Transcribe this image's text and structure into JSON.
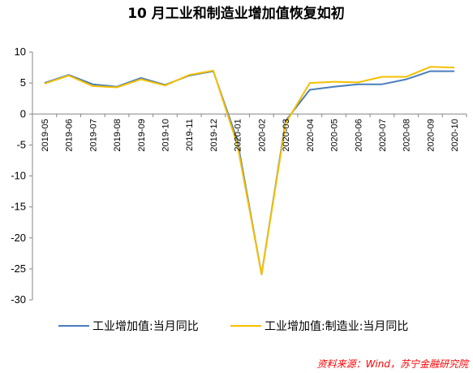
{
  "chart_data": {
    "type": "line",
    "title": "10 月工业和制造业增加值恢复如初",
    "x": [
      "2019-05",
      "2019-06",
      "2019-07",
      "2019-08",
      "2019-09",
      "2019-10",
      "2019-11",
      "2019-12",
      "2020-01",
      "2020-02",
      "2020-03",
      "2020-04",
      "2020-05",
      "2020-06",
      "2020-07",
      "2020-08",
      "2020-09",
      "2020-10"
    ],
    "series": [
      {
        "name": "工业增加值:当月同比",
        "color": "#4a7ebb",
        "values": [
          5.0,
          6.3,
          4.8,
          4.4,
          5.8,
          4.7,
          6.2,
          6.9,
          -4.3,
          -25.9,
          -1.1,
          3.9,
          4.4,
          4.8,
          4.8,
          5.6,
          6.9,
          6.9
        ]
      },
      {
        "name": "工业增加值:制造业:当月同比",
        "color": "#f5c000",
        "values": [
          4.9,
          6.2,
          4.5,
          4.3,
          5.6,
          4.6,
          6.3,
          7.0,
          -5.0,
          -25.9,
          -1.5,
          5.0,
          5.2,
          5.1,
          6.0,
          6.0,
          7.6,
          7.5
        ]
      }
    ],
    "ylim": [
      -30,
      10
    ],
    "yticks": [
      10,
      5,
      0,
      -5,
      -10,
      -15,
      -20,
      -25,
      -30
    ],
    "legend_position": "bottom",
    "grid": false,
    "xlabel": "",
    "ylabel": ""
  },
  "source": "资料来源：Wind，苏宁金融研究院"
}
